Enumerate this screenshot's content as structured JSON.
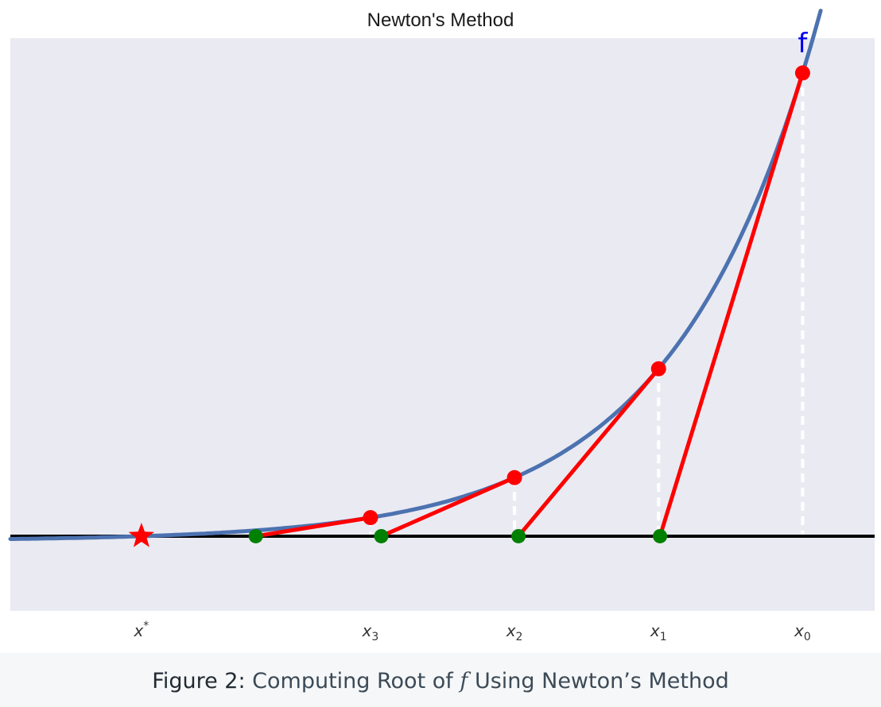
{
  "title": "Newton's Method",
  "function_label": "f",
  "caption": {
    "figure_label": "Figure 2:",
    "text_before": "Computing Root of",
    "symbol": "f",
    "text_after": "Using Newton’s Method"
  },
  "colors": {
    "curve": "#4c72b0",
    "tangent": "#ff0000",
    "point_on_curve": "#ff0000",
    "point_on_axis": "#008000",
    "root_star": "#ff0000",
    "axis_line": "#000000",
    "plot_bg": "#eaeaf2"
  },
  "chart_data": {
    "type": "line",
    "title": "Newton's Method",
    "grid": false,
    "curve_label": "f",
    "root": {
      "symbol": "x",
      "superscript": "*",
      "x": -0.09
    },
    "iterates": [
      {
        "symbol": "x",
        "subscript": "0",
        "x": 4.5
      },
      {
        "symbol": "x",
        "subscript": "1",
        "x": 3.5
      },
      {
        "symbol": "x",
        "subscript": "2",
        "x": 2.5
      },
      {
        "symbol": "x",
        "subscript": "3",
        "x": 1.5
      }
    ],
    "xlim": [
      -1.0,
      5.0
    ],
    "ylim": [
      -0.15,
      1.0
    ]
  }
}
